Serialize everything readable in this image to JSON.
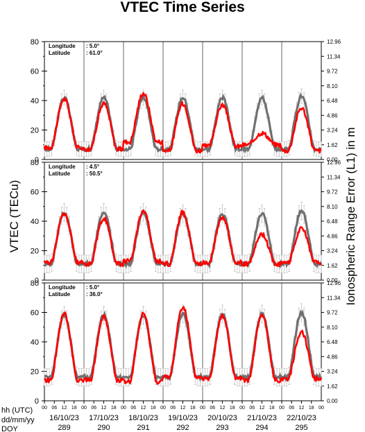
{
  "chart_data": {
    "type": "line",
    "title": "VTEC Time Series",
    "ylabel_left": "VTEC (TECu)",
    "ylabel_right": "Ionospheric Range Error (L1) in m",
    "ylim": [
      0,
      80
    ],
    "yticks_left": [
      "0",
      "20",
      "40",
      "60",
      "80"
    ],
    "yticks_right": [
      "0.00",
      "1.62",
      "3.24",
      "4.86",
      "6.48",
      "8.10",
      "9.72",
      "11.34",
      "12.96"
    ],
    "hour_ticks": [
      "00",
      "06",
      "12",
      "18"
    ],
    "row_labels": [
      "hh (UTC)",
      "dd/mm/yy",
      "DOY"
    ],
    "days": [
      {
        "date": "16/10/23",
        "doy": "289"
      },
      {
        "date": "17/10/23",
        "doy": "290"
      },
      {
        "date": "18/10/23",
        "doy": "291"
      },
      {
        "date": "19/10/23",
        "doy": "292"
      },
      {
        "date": "20/10/23",
        "doy": "293"
      },
      {
        "date": "21/10/23",
        "doy": "294"
      },
      {
        "date": "22/10/23",
        "doy": "295"
      }
    ],
    "colors": {
      "observed": "#ff0000",
      "reference": "#707070",
      "error_bar": "#c8c8c8"
    },
    "panels": [
      {
        "longitude_label": "Longitude",
        "longitude_value": ":  5.0°",
        "latitude_label": "Latitude",
        "latitude_value": ": 61.0°",
        "base": 7,
        "reference_peaks": [
          42,
          42,
          42,
          42,
          42,
          42,
          43
        ],
        "observed_peaks": [
          41,
          38,
          45,
          38,
          37,
          18,
          35
        ],
        "observed_floors": [
          8,
          7,
          12,
          6,
          9,
          10,
          6
        ],
        "spread": 5
      },
      {
        "longitude_label": "Longitude",
        "longitude_value": ":  4.5°",
        "latitude_label": "Latitude",
        "latitude_value": ": 50.5°",
        "base": 11,
        "reference_peaks": [
          46,
          46,
          46,
          45,
          45,
          45,
          47
        ],
        "observed_peaks": [
          45,
          42,
          47,
          46,
          43,
          31,
          35
        ],
        "observed_floors": [
          12,
          11,
          13,
          11,
          12,
          11,
          12
        ],
        "spread": 6
      },
      {
        "longitude_label": "Longitude",
        "longitude_value": ":  5.0°",
        "latitude_label": "Latitude",
        "latitude_value": ": 36.0°",
        "base": 16,
        "reference_peaks": [
          58,
          58,
          58,
          59,
          59,
          59,
          60
        ],
        "observed_peaks": [
          59,
          57,
          59,
          64,
          58,
          58,
          47
        ],
        "observed_floors": [
          14,
          14,
          13,
          16,
          15,
          14,
          15
        ],
        "spread": 6
      }
    ]
  }
}
